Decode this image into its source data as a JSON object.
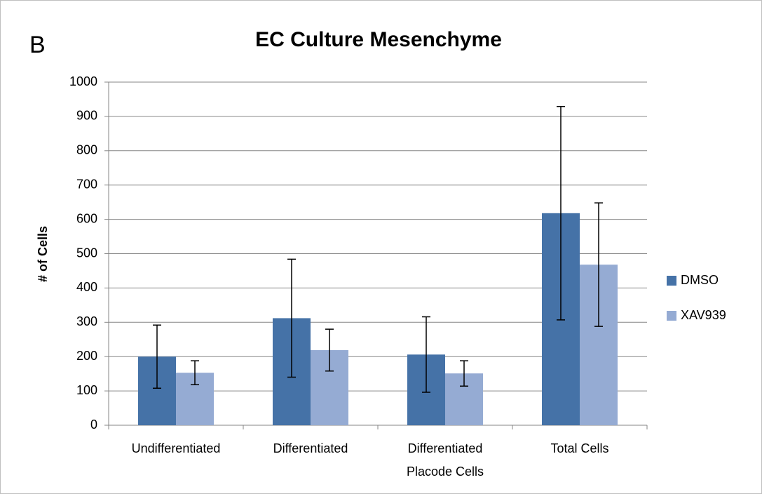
{
  "chart_data": {
    "type": "bar",
    "panel_label": "B",
    "title": "EC Culture Mesenchyme",
    "y_label": "# of Cells",
    "categories": [
      "Undifferentiated",
      "Differentiated",
      "Differentiated Placode Cells",
      "Total Cells"
    ],
    "series": [
      {
        "name": "DMSO",
        "color": "#4572a7",
        "values": [
          200,
          312,
          206,
          618
        ],
        "errors": [
          92,
          172,
          110,
          311
        ]
      },
      {
        "name": "XAV939",
        "color": "#95abd3",
        "values": [
          153,
          219,
          151,
          468
        ],
        "errors": [
          35,
          61,
          37,
          180
        ]
      }
    ],
    "ylim": [
      0,
      1000
    ],
    "yticks": [
      0,
      100,
      200,
      300,
      400,
      500,
      600,
      700,
      800,
      900,
      1000
    ],
    "grid": true,
    "legend": "right"
  }
}
